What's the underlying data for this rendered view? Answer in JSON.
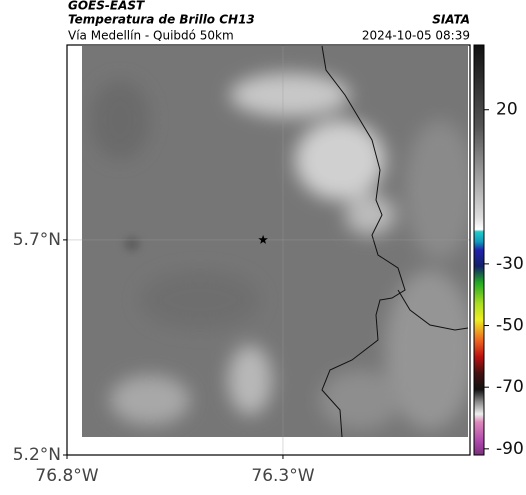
{
  "map": {
    "title": "GOES-EAST",
    "subtitle": "Temperatura de Brillo CH13",
    "source": "SIATA",
    "caption": "Vía Medellín - Quibdó 50km",
    "timestamp": "2024-10-05 08:39",
    "xlim": [
      -76.8,
      -75.867
    ],
    "ylim": [
      5.2,
      6.153
    ],
    "xticks": [
      {
        "value": -76.8,
        "label": "76.8°W"
      },
      {
        "value": -76.3,
        "label": "76.3°W"
      }
    ],
    "yticks": [
      {
        "value": 5.2,
        "label": "5.2°N"
      },
      {
        "value": 5.7,
        "label": "5.7°N"
      }
    ],
    "grid": true,
    "marker": {
      "lon": -76.346,
      "lat": 5.7
    },
    "colorbar": {
      "lim": [
        -92,
        41
      ],
      "ticks": [
        20,
        -30,
        -50,
        -70,
        -90
      ]
    }
  }
}
